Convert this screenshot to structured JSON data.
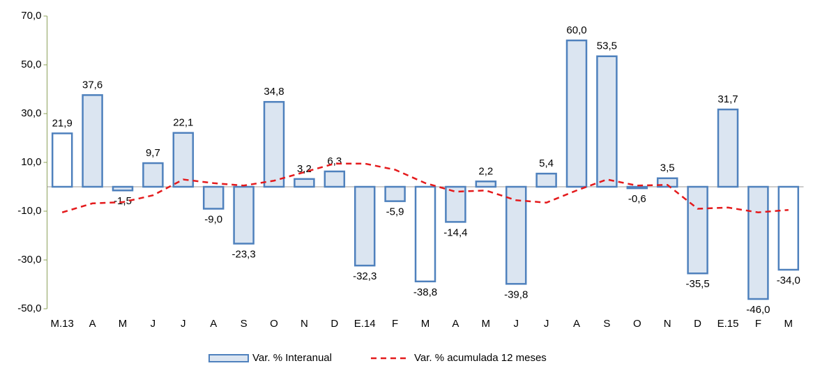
{
  "chart_data": {
    "type": "bar",
    "categories": [
      "M.13",
      "A",
      "M",
      "J",
      "J",
      "A",
      "S",
      "O",
      "N",
      "D",
      "E.14",
      "F",
      "M",
      "A",
      "M",
      "J",
      "J",
      "A",
      "S",
      "O",
      "N",
      "D",
      "E.15",
      "F",
      "M"
    ],
    "series": [
      {
        "name": "Var. % Interanual",
        "type": "bar",
        "color": "#dbe5f1",
        "edge_color": "#4f81bd",
        "colors": [
          "#ffffff",
          "#dbe5f1",
          "#dbe5f1",
          "#dbe5f1",
          "#dbe5f1",
          "#dbe5f1",
          "#dbe5f1",
          "#dbe5f1",
          "#dbe5f1",
          "#dbe5f1",
          "#dbe5f1",
          "#dbe5f1",
          "#ffffff",
          "#dbe5f1",
          "#dbe5f1",
          "#dbe5f1",
          "#dbe5f1",
          "#dbe5f1",
          "#dbe5f1",
          "#dbe5f1",
          "#dbe5f1",
          "#dbe5f1",
          "#dbe5f1",
          "#dbe5f1",
          "#ffffff"
        ],
        "values": [
          21.9,
          37.6,
          -1.5,
          9.7,
          22.1,
          -9.0,
          -23.3,
          34.8,
          3.2,
          6.3,
          -32.3,
          -5.9,
          -38.8,
          -14.4,
          2.2,
          -39.8,
          5.4,
          60.0,
          53.5,
          -0.6,
          3.5,
          -35.5,
          31.7,
          -46.0,
          -34.0
        ],
        "value_labels": [
          "21,9",
          "37,6",
          "-1,5",
          "9,7",
          "22,1",
          "-9,0",
          "-23,3",
          "34,8",
          "3,2",
          "6,3",
          "-32,3",
          "-5,9",
          "-38,8",
          "-14,4",
          "2,2",
          "-39,8",
          "5,4",
          "60,0",
          "53,5",
          "-0,6",
          "3,5",
          "-35,5",
          "31,7",
          "-46,0",
          "-34,0"
        ]
      },
      {
        "name": "Var. % acumulada 12 meses",
        "type": "line",
        "color": "#e41a1c",
        "dashed": true,
        "values": [
          -10.5,
          -6.8,
          -6.3,
          -3.5,
          3.0,
          1.5,
          0.5,
          2.5,
          6.0,
          9.5,
          9.5,
          7.0,
          1.5,
          -2.0,
          -1.5,
          -5.5,
          -6.5,
          -1.5,
          3.0,
          0.5,
          0.8,
          -9.0,
          -8.5,
          -10.5,
          -9.5
        ]
      }
    ],
    "ylim": [
      -50,
      70
    ],
    "yticks": [
      {
        "value": -50,
        "label": "-50,0"
      },
      {
        "value": -30,
        "label": "-30,0"
      },
      {
        "value": -10,
        "label": "-10,0"
      },
      {
        "value": 10,
        "label": "10,0"
      },
      {
        "value": 30,
        "label": "30,0"
      },
      {
        "value": 50,
        "label": "50,0"
      },
      {
        "value": 70,
        "label": "70,0"
      }
    ],
    "legend": "bottom"
  }
}
